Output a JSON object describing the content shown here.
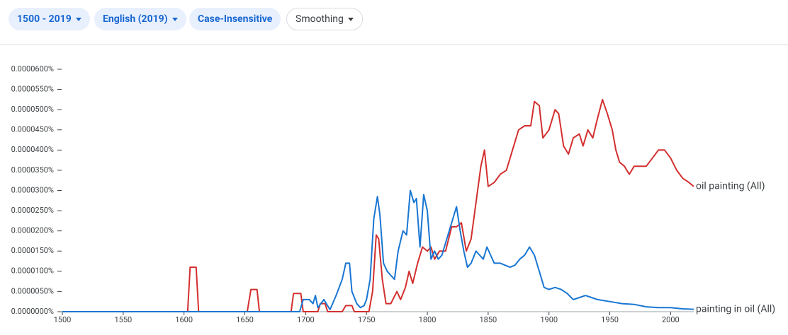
{
  "toolbar": {
    "buttons": [
      "1500 - 2019",
      "English (2019)",
      "Case-Insensitive",
      "Smoothing"
    ]
  },
  "chart_data": {
    "type": "line",
    "xlim": [
      1500,
      2019
    ],
    "xticks": [
      1500,
      1550,
      1600,
      1650,
      1700,
      1750,
      1800,
      1850,
      1900,
      1950,
      2000
    ],
    "ylim": [
      0,
      6e-05
    ],
    "yticks": [
      {
        "value": 0,
        "label": "0.0000000%"
      },
      {
        "value": 5e-06,
        "label": "0.0000050%"
      },
      {
        "value": 1e-05,
        "label": "0.0000100%"
      },
      {
        "value": 1.5e-05,
        "label": "0.0000150%"
      },
      {
        "value": 2e-05,
        "label": "0.0000200%"
      },
      {
        "value": 2.5e-05,
        "label": "0.0000250%"
      },
      {
        "value": 3e-05,
        "label": "0.0000300%"
      },
      {
        "value": 3.5e-05,
        "label": "0.0000350%"
      },
      {
        "value": 4e-05,
        "label": "0.0000400%"
      },
      {
        "value": 4.5e-05,
        "label": "0.0000450%"
      },
      {
        "value": 5e-05,
        "label": "0.0000500%"
      },
      {
        "value": 5.5e-05,
        "label": "0.0000550%"
      },
      {
        "value": 6e-05,
        "label": "0.0000600%"
      }
    ],
    "series": [
      {
        "name": "oil painting (All)",
        "color": "#d32f2f",
        "x": [
          1500,
          1603,
          1605,
          1610,
          1612,
          1652,
          1655,
          1660,
          1662,
          1688,
          1690,
          1696,
          1698,
          1710,
          1712,
          1716,
          1718,
          1730,
          1733,
          1738,
          1740,
          1752,
          1755,
          1758,
          1760,
          1763,
          1766,
          1770,
          1775,
          1778,
          1782,
          1785,
          1788,
          1792,
          1796,
          1800,
          1803,
          1806,
          1810,
          1815,
          1820,
          1824,
          1828,
          1832,
          1836,
          1840,
          1844,
          1847,
          1850,
          1855,
          1860,
          1865,
          1870,
          1875,
          1880,
          1885,
          1888,
          1892,
          1895,
          1900,
          1905,
          1908,
          1912,
          1916,
          1920,
          1925,
          1928,
          1932,
          1936,
          1940,
          1944,
          1948,
          1952,
          1955,
          1958,
          1962,
          1966,
          1970,
          1975,
          1980,
          1985,
          1990,
          1995,
          2000,
          2005,
          2010,
          2015,
          2019
        ],
        "values": [
          0,
          0,
          1.1e-05,
          1.1e-05,
          0,
          0,
          5.5e-06,
          5.5e-06,
          0,
          0,
          4.5e-06,
          4.5e-06,
          0,
          0,
          2e-06,
          2e-06,
          0,
          0,
          1.5e-06,
          1.5e-06,
          0,
          0,
          5e-06,
          1.9e-05,
          1.8e-05,
          8e-06,
          2e-06,
          2e-06,
          5e-06,
          3e-06,
          6e-06,
          1e-05,
          7e-06,
          1.2e-05,
          1.6e-05,
          1.5e-05,
          1.6e-05,
          1.3e-05,
          1.5e-05,
          1.5e-05,
          2.1e-05,
          2.1e-05,
          2.2e-05,
          1.5e-05,
          1.8e-05,
          2.7e-05,
          3.6e-05,
          4e-05,
          3.1e-05,
          3.2e-05,
          3.4e-05,
          3.5e-05,
          4e-05,
          4.5e-05,
          4.6e-05,
          4.6e-05,
          5.2e-05,
          5.1e-05,
          4.3e-05,
          4.5e-05,
          5e-05,
          4.9e-05,
          4.1e-05,
          3.9e-05,
          4.3e-05,
          4.4e-05,
          4.1e-05,
          4.5e-05,
          4.3e-05,
          4.8e-05,
          5.25e-05,
          4.9e-05,
          4.5e-05,
          4e-05,
          3.7e-05,
          3.6e-05,
          3.4e-05,
          3.6e-05,
          3.6e-05,
          3.6e-05,
          3.8e-05,
          4e-05,
          4e-05,
          3.8e-05,
          3.5e-05,
          3.3e-05,
          3.2e-05,
          3.1e-05
        ]
      },
      {
        "name": "painting in oil (All)",
        "color": "#1976d2",
        "x": [
          1500,
          1695,
          1698,
          1703,
          1706,
          1708,
          1710,
          1715,
          1720,
          1725,
          1730,
          1733,
          1736,
          1738,
          1742,
          1745,
          1748,
          1750,
          1753,
          1756,
          1759,
          1761,
          1764,
          1767,
          1770,
          1773,
          1776,
          1780,
          1783,
          1786,
          1789,
          1791,
          1794,
          1797,
          1800,
          1803,
          1806,
          1809,
          1812,
          1816,
          1820,
          1824,
          1827,
          1830,
          1833,
          1836,
          1840,
          1843,
          1846,
          1849,
          1852,
          1855,
          1860,
          1864,
          1868,
          1872,
          1876,
          1880,
          1884,
          1888,
          1892,
          1896,
          1900,
          1905,
          1910,
          1915,
          1920,
          1925,
          1930,
          1935,
          1940,
          1950,
          1960,
          1970,
          1980,
          1990,
          2000,
          2010,
          2019
        ],
        "values": [
          0,
          0,
          3e-06,
          3e-06,
          2e-06,
          4e-06,
          1e-06,
          3e-06,
          5e-07,
          4e-06,
          8e-06,
          1.2e-05,
          1.2e-05,
          5e-06,
          2e-06,
          1e-06,
          1.5e-06,
          3e-06,
          8e-06,
          2.3e-05,
          2.85e-05,
          2.4e-05,
          1.2e-05,
          1e-05,
          9e-06,
          8e-06,
          1.5e-05,
          2e-05,
          1.9e-05,
          3e-05,
          2.7e-05,
          2.8e-05,
          1.6e-05,
          2.9e-05,
          2.5e-05,
          1.3e-05,
          1.5e-05,
          1.3e-05,
          1.4e-05,
          1.8e-05,
          2.2e-05,
          2.6e-05,
          2e-05,
          1.5e-05,
          1.1e-05,
          1.2e-05,
          1.5e-05,
          1.4e-05,
          1.3e-05,
          1.6e-05,
          1.4e-05,
          1.2e-05,
          1.2e-05,
          1.15e-05,
          1.1e-05,
          1.15e-05,
          1.3e-05,
          1.4e-05,
          1.6e-05,
          1.4e-05,
          1e-05,
          6e-06,
          5.5e-06,
          6e-06,
          5.5e-06,
          4.5e-06,
          3e-06,
          3.5e-06,
          4e-06,
          3.5e-06,
          3e-06,
          2.5e-06,
          2e-06,
          1.8e-06,
          1.2e-06,
          1e-06,
          1e-06,
          7e-07,
          6e-07
        ]
      }
    ]
  }
}
